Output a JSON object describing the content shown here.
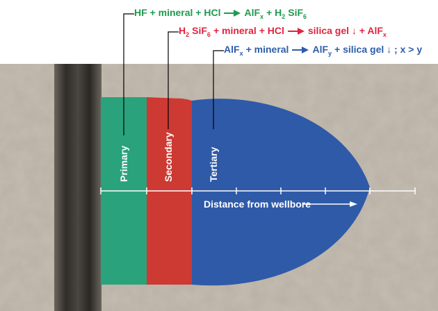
{
  "equations": [
    {
      "color": "#1f9a4e",
      "lhs": [
        {
          "text": "HF + mineral + HCl"
        }
      ],
      "rhs": [
        {
          "text": "AlF",
          "sub": "x"
        },
        {
          "text": "+ H",
          "sub": "2"
        },
        {
          "text": "SiF",
          "sub": "6"
        }
      ]
    },
    {
      "color": "#e2233f",
      "lhs": [
        {
          "text": "H",
          "sub": "2"
        },
        {
          "text": "SiF",
          "sub": "6"
        },
        {
          "text": "+ mineral + HCl"
        }
      ],
      "rhs": [
        {
          "text": "silica gel ↓ + AlF",
          "sub": "x"
        }
      ]
    },
    {
      "color": "#2d5da9",
      "lhs": [
        {
          "text": "AlF",
          "sub": "x"
        },
        {
          "text": "+ mineral"
        }
      ],
      "rhs": [
        {
          "text": "AlF",
          "sub": "y"
        },
        {
          "text": "+ silica gel ↓ ; x > y"
        }
      ]
    }
  ],
  "zones": [
    {
      "label": "Primary",
      "color": "#2aa27c"
    },
    {
      "label": "Secondary",
      "color": "#cc3a33"
    },
    {
      "label": "Tertiary",
      "color": "#2f5aa8"
    }
  ],
  "axis_label": "Distance from wellbore"
}
